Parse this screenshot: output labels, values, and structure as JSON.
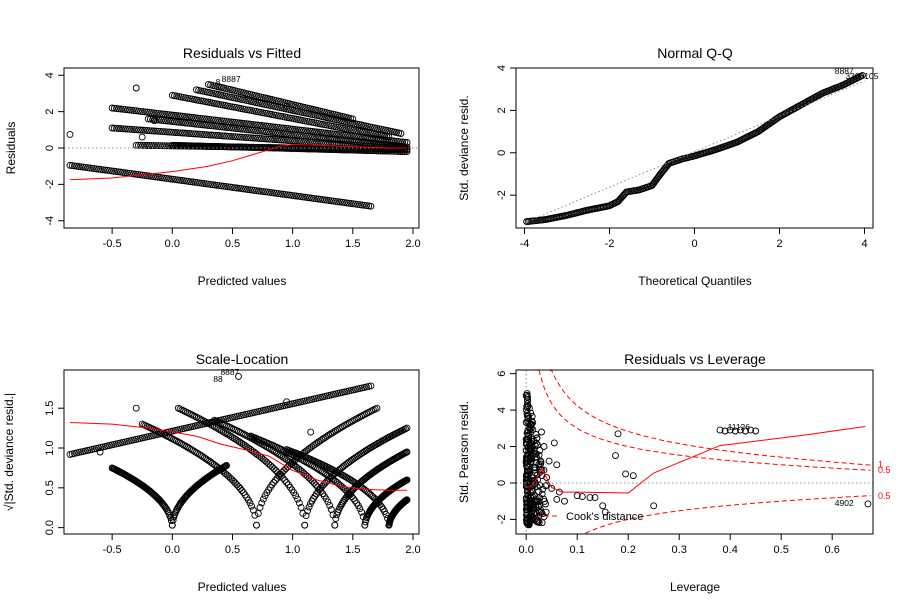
{
  "chart_data": [
    {
      "id": "rvf",
      "type": "scatter",
      "title": "Residuals vs Fitted",
      "xlabel": "Predicted values",
      "ylabel": "Residuals",
      "xlim": [
        -0.9,
        2.05
      ],
      "ylim": [
        -4.4,
        4.4
      ],
      "xticks": [
        -0.5,
        0.0,
        0.5,
        1.0,
        1.5,
        2.0
      ],
      "xtick_labels": [
        "-0.5",
        "0.0",
        "0.5",
        "1.0",
        "1.5",
        "2.0"
      ],
      "yticks": [
        -4,
        -2,
        0,
        2,
        4
      ],
      "ytick_labels": [
        "-4",
        "-2",
        "0",
        "2",
        "4"
      ],
      "reference_line": {
        "y": 0,
        "style": "dotted"
      },
      "bands": [
        {
          "x0": -0.85,
          "x1": 1.65,
          "y0": -0.95,
          "y1": -3.2
        },
        {
          "x0": -0.3,
          "x1": 1.95,
          "y0": 0.15,
          "y1": -0.1
        },
        {
          "x0": 0.0,
          "x1": 1.95,
          "y0": 0.15,
          "y1": -0.2
        },
        {
          "x0": -0.5,
          "x1": 1.95,
          "y0": 1.1,
          "y1": -0.05
        },
        {
          "x0": -0.2,
          "x1": 1.95,
          "y0": 1.6,
          "y1": 0.05
        },
        {
          "x0": -0.5,
          "x1": 1.95,
          "y0": 2.2,
          "y1": 0.3
        },
        {
          "x0": 0.0,
          "x1": 1.8,
          "y0": 2.9,
          "y1": 0.6
        },
        {
          "x0": 0.2,
          "x1": 1.9,
          "y0": 3.2,
          "y1": 0.8
        },
        {
          "x0": 0.3,
          "x1": 1.5,
          "y0": 3.5,
          "y1": 1.6
        }
      ],
      "extra_points": [
        [
          -0.85,
          0.75
        ],
        [
          -0.3,
          3.3
        ],
        [
          -0.15,
          1.5
        ],
        [
          -0.25,
          0.6
        ],
        [
          0.95,
          2.3
        ]
      ],
      "smooth_line": {
        "x": [
          -0.85,
          -0.5,
          0.0,
          0.3,
          0.5,
          0.7,
          0.9,
          1.0,
          1.2,
          1.4,
          1.6,
          1.8,
          1.95
        ],
        "y": [
          -1.75,
          -1.65,
          -1.3,
          -1.0,
          -0.7,
          -0.3,
          0.1,
          0.2,
          0.15,
          0.1,
          0.05,
          0.0,
          0.0
        ]
      },
      "annotations": [
        {
          "x": 0.41,
          "y": 3.62,
          "text": "8887"
        },
        {
          "x": 0.36,
          "y": 3.47,
          "text": "8"
        }
      ]
    },
    {
      "id": "qq",
      "type": "scatter",
      "title": "Normal Q-Q",
      "xlabel": "Theoretical Quantiles",
      "ylabel": "Std. deviance resid.",
      "xlim": [
        -4.2,
        4.2
      ],
      "ylim": [
        -3.55,
        4.0
      ],
      "xticks": [
        -4,
        -2,
        0,
        2,
        4
      ],
      "xtick_labels": [
        "-4",
        "-2",
        "0",
        "2",
        "4"
      ],
      "yticks": [
        -2,
        0,
        2,
        4
      ],
      "ytick_labels": [
        "-2",
        "0",
        "2",
        "4"
      ],
      "curve": {
        "x": [
          -3.95,
          -3.5,
          -3.0,
          -2.5,
          -2.0,
          -1.8,
          -1.6,
          -1.3,
          -1.0,
          -0.8,
          -0.6,
          -0.3,
          0.0,
          0.5,
          1.0,
          1.5,
          2.0,
          2.5,
          3.0,
          3.5,
          3.95
        ],
        "y": [
          -3.25,
          -3.15,
          -2.95,
          -2.7,
          -2.5,
          -2.3,
          -1.85,
          -1.75,
          -1.55,
          -1.0,
          -0.5,
          -0.3,
          -0.15,
          0.15,
          0.5,
          1.0,
          1.7,
          2.25,
          2.8,
          3.2,
          3.65
        ]
      },
      "reference_line": {
        "x0": -4.0,
        "y0": -3.3,
        "x1": 4.0,
        "y1": 3.4,
        "style": "dotted"
      },
      "annotations": [
        {
          "x": 3.3,
          "y": 3.72,
          "text": "8887"
        },
        {
          "x": 3.55,
          "y": 3.48,
          "text": "3306105"
        }
      ]
    },
    {
      "id": "sl",
      "type": "scatter",
      "title": "Scale-Location",
      "xlabel": "Predicted values",
      "ylabel": "√|Std. deviance resid.|",
      "xlim": [
        -0.9,
        2.05
      ],
      "ylim": [
        -0.08,
        1.98
      ],
      "xticks": [
        -0.5,
        0.0,
        0.5,
        1.0,
        1.5,
        2.0
      ],
      "xtick_labels": [
        "-0.5",
        "0.0",
        "0.5",
        "1.0",
        "1.5",
        "2.0"
      ],
      "yticks": [
        0.0,
        0.5,
        1.0,
        1.5
      ],
      "ytick_labels": [
        "0.0",
        "0.5",
        "1.0",
        "1.5"
      ],
      "v_curves": [
        {
          "x0": -0.5,
          "xz": 0.0,
          "x1": 0.45,
          "ystart": 0.75,
          "yend": 0.78
        },
        {
          "x0": -0.25,
          "xz": 0.7,
          "x1": 1.7,
          "ystart": 1.3,
          "yend": 1.5
        },
        {
          "x0": 0.05,
          "xz": 1.1,
          "x1": 1.95,
          "ystart": 1.5,
          "yend": 1.25
        },
        {
          "x0": 0.35,
          "xz": 1.35,
          "x1": 1.95,
          "ystart": 1.35,
          "yend": 0.95
        },
        {
          "x0": 0.65,
          "xz": 1.6,
          "x1": 1.95,
          "ystart": 1.15,
          "yend": 0.6
        },
        {
          "x0": 0.95,
          "xz": 1.8,
          "x1": 1.95,
          "ystart": 0.98,
          "yend": 0.35
        }
      ],
      "rising_band": {
        "x0": -0.85,
        "x1": 1.65,
        "y0": 0.92,
        "y1": 1.78
      },
      "extra_points": [
        [
          -0.6,
          0.95
        ],
        [
          -0.3,
          1.5
        ],
        [
          0.55,
          1.9
        ],
        [
          0.95,
          1.58
        ],
        [
          1.15,
          1.2
        ]
      ],
      "smooth_line": {
        "x": [
          -0.85,
          -0.5,
          -0.2,
          0.0,
          0.2,
          0.4,
          0.6,
          0.8,
          1.0,
          1.2,
          1.4,
          1.6,
          1.8,
          1.95
        ],
        "y": [
          1.32,
          1.3,
          1.25,
          1.2,
          1.15,
          1.05,
          0.98,
          0.9,
          0.72,
          0.6,
          0.52,
          0.48,
          0.47,
          0.47
        ]
      },
      "annotations": [
        {
          "x": 0.4,
          "y": 1.92,
          "text": "8887"
        },
        {
          "x": 0.34,
          "y": 1.83,
          "text": "88"
        }
      ]
    },
    {
      "id": "rvl",
      "type": "scatter",
      "title": "Residuals vs Leverage",
      "xlabel": "Leverage",
      "ylabel": "Std. Pearson resid.",
      "xlim": [
        -0.02,
        0.68
      ],
      "ylim": [
        -2.8,
        6.2
      ],
      "xticks": [
        0.0,
        0.1,
        0.2,
        0.3,
        0.4,
        0.5,
        0.6
      ],
      "xtick_labels": [
        "0.0",
        "0.1",
        "0.2",
        "0.3",
        "0.4",
        "0.5",
        "0.6"
      ],
      "yticks": [
        -2,
        0,
        2,
        4,
        6
      ],
      "ytick_labels": [
        "-2",
        "0",
        "2",
        "4",
        "6"
      ],
      "points": [
        [
          0.06,
          -0.9
        ],
        [
          0.075,
          -1.0
        ],
        [
          0.1,
          -0.7
        ],
        [
          0.11,
          -0.75
        ],
        [
          0.125,
          -0.8
        ],
        [
          0.135,
          -0.8
        ],
        [
          0.15,
          -1.25
        ],
        [
          0.155,
          -1.6
        ],
        [
          0.175,
          1.5
        ],
        [
          0.18,
          2.7
        ],
        [
          0.195,
          0.5
        ],
        [
          0.21,
          0.4
        ],
        [
          0.25,
          -1.25
        ],
        [
          0.38,
          2.9
        ],
        [
          0.39,
          2.85
        ],
        [
          0.4,
          2.9
        ],
        [
          0.41,
          2.85
        ],
        [
          0.42,
          2.9
        ],
        [
          0.43,
          2.85
        ],
        [
          0.44,
          2.9
        ],
        [
          0.45,
          2.85
        ],
        [
          0.67,
          -1.15
        ],
        [
          0.04,
          0.3
        ],
        [
          0.045,
          1.2
        ],
        [
          0.05,
          -0.3
        ],
        [
          0.035,
          2.0
        ],
        [
          0.03,
          2.8
        ],
        [
          0.06,
          1.0
        ],
        [
          0.055,
          2.2
        ],
        [
          0.065,
          -0.5
        ]
      ],
      "smooth_line": {
        "x": [
          0.0,
          0.01,
          0.02,
          0.03,
          0.05,
          0.07,
          0.1,
          0.2,
          0.25,
          0.38,
          0.55,
          0.665
        ],
        "y": [
          -0.25,
          -0.2,
          0.2,
          0.8,
          -0.25,
          -0.5,
          -0.5,
          -0.55,
          0.55,
          2.05,
          2.65,
          3.1
        ]
      },
      "reference_line": {
        "y": 0,
        "style": "dotted"
      },
      "cook_lines": [
        {
          "level": 0.5,
          "label": "0.5"
        },
        {
          "level": 1,
          "label": "1"
        }
      ],
      "cook_labels_lower": [
        "0.5"
      ],
      "legend": {
        "text": "Cook's distance",
        "position": "bottom-left"
      },
      "annotations": [
        {
          "x": 0.395,
          "y": 2.9,
          "text": "11126"
        },
        {
          "x": 0.605,
          "y": -1.25,
          "text": "4902"
        }
      ]
    }
  ]
}
